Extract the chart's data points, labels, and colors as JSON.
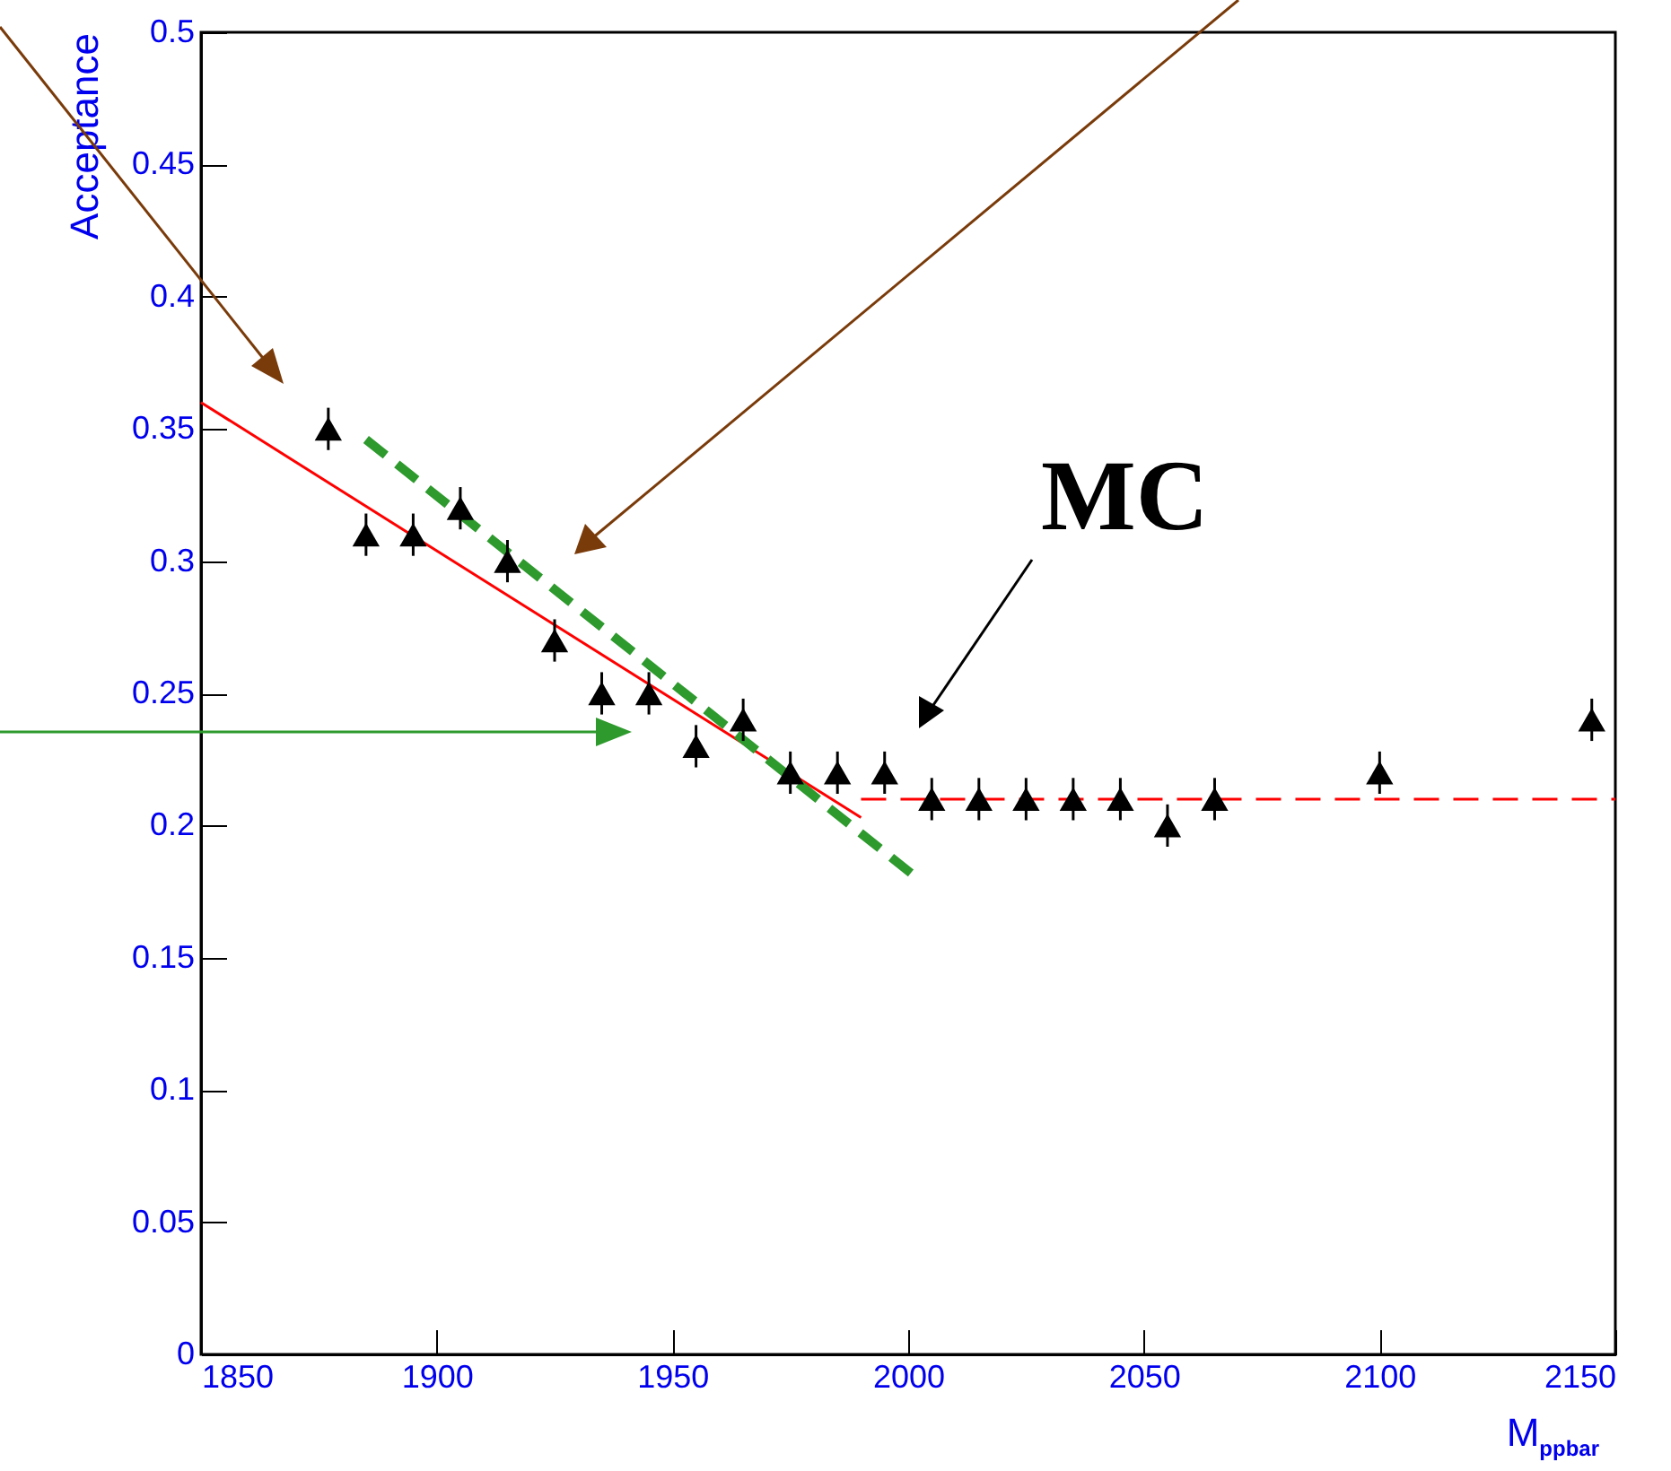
{
  "chart_data": {
    "type": "scatter",
    "xlabel": "M$_{ppbar}$",
    "ylabel": "Acceptance",
    "xlim": [
      1850,
      2150
    ],
    "ylim": [
      0,
      0.5
    ],
    "xticks": [
      1850,
      1900,
      1950,
      2000,
      2050,
      2100,
      2150
    ],
    "yticks": [
      0,
      0.05,
      0.1,
      0.15,
      0.2,
      0.25,
      0.3,
      0.35,
      0.4,
      0.45,
      0.5
    ],
    "grid": false,
    "annotations": [
      "MC"
    ],
    "series": [
      {
        "marker": "triangle",
        "color": "#000000",
        "x": [
          1877,
          1885,
          1895,
          1905,
          1915,
          1925,
          1935,
          1945,
          1955,
          1965,
          1975,
          1985,
          1995,
          2005,
          2015,
          2025,
          2035,
          2045,
          2055,
          2065,
          2100,
          2145
        ],
        "values": [
          0.35,
          0.31,
          0.31,
          0.32,
          0.3,
          0.27,
          0.25,
          0.25,
          0.23,
          0.24,
          0.22,
          0.22,
          0.22,
          0.21,
          0.21,
          0.21,
          0.21,
          0.21,
          0.2,
          0.21,
          0.22,
          0.24
        ],
        "errors": [
          0.008,
          0.008,
          0.008,
          0.008,
          0.008,
          0.008,
          0.008,
          0.008,
          0.008,
          0.008,
          0.008,
          0.008,
          0.008,
          0.008,
          0.008,
          0.008,
          0.008,
          0.008,
          0.008,
          0.008,
          0.008,
          0.008
        ]
      },
      {
        "type": "line",
        "color": "#ff0000",
        "line_style": "solid",
        "x": [
          1850,
          1990
        ],
        "values": [
          0.36,
          0.203
        ]
      },
      {
        "type": "line",
        "color": "#ff0000",
        "line_style": "dashed",
        "x": [
          1990,
          2150
        ],
        "values": [
          0.21,
          0.21
        ]
      },
      {
        "type": "line",
        "color": "#2e9a2e",
        "line_style": "dashed",
        "x": [
          1885,
          2002
        ],
        "values": [
          0.346,
          0.18
        ]
      }
    ]
  }
}
